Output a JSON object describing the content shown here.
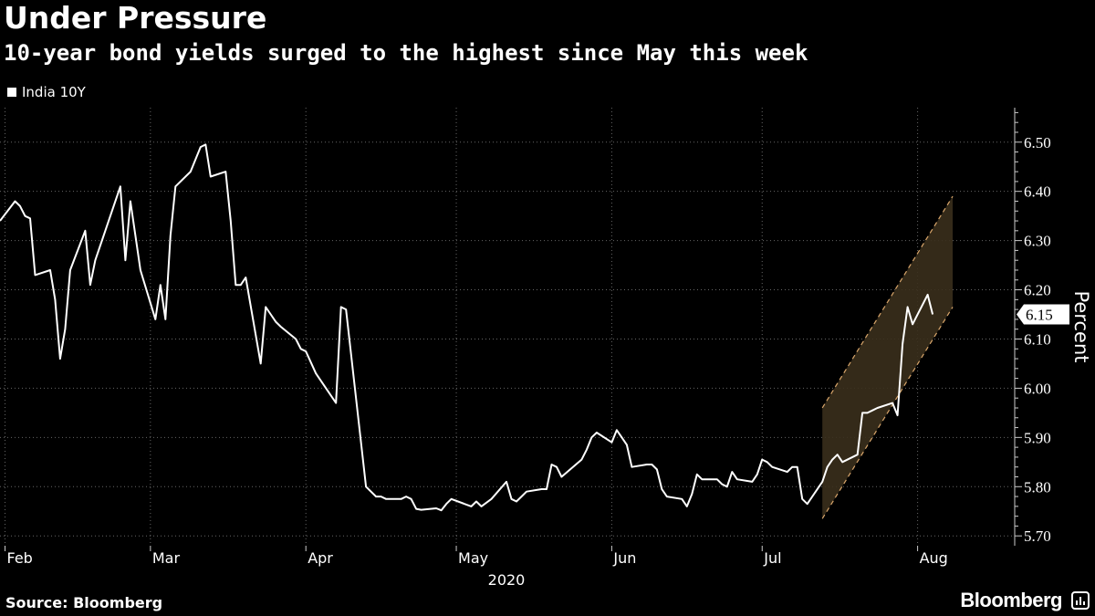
{
  "header": {
    "title": "Under Pressure",
    "subtitle": "10-year bond yields surged to the highest since May this week"
  },
  "footer": {
    "source": "Source: Bloomberg",
    "brand": "Bloomberg"
  },
  "colors": {
    "background": "#000000",
    "line": "#ffffff",
    "channel_fill": "#3a2f1c",
    "channel_border": "#d9a66b",
    "grid": "#666666"
  },
  "chart_data": {
    "type": "line",
    "title": "Under Pressure",
    "subtitle": "10-year bond yields surged to the highest since May this week",
    "ylabel": "Percent",
    "xlabel": "2020",
    "ylim": [
      5.68,
      6.57
    ],
    "xlim": [
      "2020-01-31",
      "2020-08-20"
    ],
    "y_axis_side": "right",
    "grid": true,
    "legend_position": "top-left",
    "x_tick_labels": [
      "Feb",
      "Mar",
      "Apr",
      "May",
      "Jun",
      "Jul",
      "Aug"
    ],
    "x_tick_dates": [
      "2020-02-01",
      "2020-03-01",
      "2020-04-01",
      "2020-05-01",
      "2020-06-01",
      "2020-07-01",
      "2020-08-01"
    ],
    "y_ticks": [
      5.7,
      5.8,
      5.9,
      6.0,
      6.1,
      6.2,
      6.3,
      6.4,
      6.5
    ],
    "y_tick_labels": [
      "5.70",
      "5.80",
      "5.90",
      "6.00",
      "6.10",
      "6.20",
      "6.30",
      "6.40",
      "6.50"
    ],
    "last_value_label": "6.15",
    "series": [
      {
        "name": "India 10Y",
        "color": "#ffffff",
        "points": [
          [
            "2020-01-31",
            6.34
          ],
          [
            "2020-02-03",
            6.38
          ],
          [
            "2020-02-04",
            6.37
          ],
          [
            "2020-02-05",
            6.35
          ],
          [
            "2020-02-06",
            6.345
          ],
          [
            "2020-02-07",
            6.23
          ],
          [
            "2020-02-10",
            6.24
          ],
          [
            "2020-02-11",
            6.18
          ],
          [
            "2020-02-12",
            6.06
          ],
          [
            "2020-02-13",
            6.12
          ],
          [
            "2020-02-14",
            6.24
          ],
          [
            "2020-02-17",
            6.32
          ],
          [
            "2020-02-18",
            6.21
          ],
          [
            "2020-02-19",
            6.26
          ],
          [
            "2020-02-20",
            6.29
          ],
          [
            "2020-02-24",
            6.41
          ],
          [
            "2020-02-25",
            6.26
          ],
          [
            "2020-02-26",
            6.38
          ],
          [
            "2020-02-27",
            6.31
          ],
          [
            "2020-02-28",
            6.24
          ],
          [
            "2020-03-02",
            6.14
          ],
          [
            "2020-03-03",
            6.21
          ],
          [
            "2020-03-04",
            6.14
          ],
          [
            "2020-03-05",
            6.31
          ],
          [
            "2020-03-06",
            6.41
          ],
          [
            "2020-03-09",
            6.44
          ],
          [
            "2020-03-11",
            6.49
          ],
          [
            "2020-03-12",
            6.495
          ],
          [
            "2020-03-13",
            6.43
          ],
          [
            "2020-03-16",
            6.44
          ],
          [
            "2020-03-17",
            6.34
          ],
          [
            "2020-03-18",
            6.21
          ],
          [
            "2020-03-19",
            6.21
          ],
          [
            "2020-03-20",
            6.225
          ],
          [
            "2020-03-23",
            6.05
          ],
          [
            "2020-03-24",
            6.165
          ],
          [
            "2020-03-25",
            6.15
          ],
          [
            "2020-03-26",
            6.135
          ],
          [
            "2020-03-27",
            6.125
          ],
          [
            "2020-03-30",
            6.1
          ],
          [
            "2020-03-31",
            6.08
          ],
          [
            "2020-04-01",
            6.075
          ],
          [
            "2020-04-03",
            6.03
          ],
          [
            "2020-04-07",
            5.97
          ],
          [
            "2020-04-08",
            6.165
          ],
          [
            "2020-04-09",
            6.16
          ],
          [
            "2020-04-13",
            5.8
          ],
          [
            "2020-04-15",
            5.78
          ],
          [
            "2020-04-16",
            5.78
          ],
          [
            "2020-04-17",
            5.775
          ],
          [
            "2020-04-20",
            5.775
          ],
          [
            "2020-04-21",
            5.78
          ],
          [
            "2020-04-22",
            5.775
          ],
          [
            "2020-04-23",
            5.755
          ],
          [
            "2020-04-24",
            5.753
          ],
          [
            "2020-04-27",
            5.756
          ],
          [
            "2020-04-28",
            5.752
          ],
          [
            "2020-04-29",
            5.765
          ],
          [
            "2020-04-30",
            5.775
          ],
          [
            "2020-05-04",
            5.76
          ],
          [
            "2020-05-05",
            5.77
          ],
          [
            "2020-05-06",
            5.76
          ],
          [
            "2020-05-08",
            5.775
          ],
          [
            "2020-05-11",
            5.81
          ],
          [
            "2020-05-12",
            5.775
          ],
          [
            "2020-05-13",
            5.77
          ],
          [
            "2020-05-14",
            5.78
          ],
          [
            "2020-05-15",
            5.79
          ],
          [
            "2020-05-18",
            5.795
          ],
          [
            "2020-05-19",
            5.795
          ],
          [
            "2020-05-20",
            5.845
          ],
          [
            "2020-05-21",
            5.84
          ],
          [
            "2020-05-22",
            5.82
          ],
          [
            "2020-05-26",
            5.855
          ],
          [
            "2020-05-27",
            5.875
          ],
          [
            "2020-05-28",
            5.9
          ],
          [
            "2020-05-29",
            5.91
          ],
          [
            "2020-06-01",
            5.89
          ],
          [
            "2020-06-02",
            5.915
          ],
          [
            "2020-06-03",
            5.9
          ],
          [
            "2020-06-04",
            5.885
          ],
          [
            "2020-06-05",
            5.84
          ],
          [
            "2020-06-08",
            5.845
          ],
          [
            "2020-06-09",
            5.845
          ],
          [
            "2020-06-10",
            5.835
          ],
          [
            "2020-06-11",
            5.795
          ],
          [
            "2020-06-12",
            5.78
          ],
          [
            "2020-06-15",
            5.775
          ],
          [
            "2020-06-16",
            5.76
          ],
          [
            "2020-06-17",
            5.785
          ],
          [
            "2020-06-18",
            5.825
          ],
          [
            "2020-06-19",
            5.815
          ],
          [
            "2020-06-22",
            5.815
          ],
          [
            "2020-06-23",
            5.805
          ],
          [
            "2020-06-24",
            5.8
          ],
          [
            "2020-06-25",
            5.83
          ],
          [
            "2020-06-26",
            5.815
          ],
          [
            "2020-06-29",
            5.81
          ],
          [
            "2020-06-30",
            5.825
          ],
          [
            "2020-07-01",
            5.855
          ],
          [
            "2020-07-02",
            5.85
          ],
          [
            "2020-07-03",
            5.84
          ],
          [
            "2020-07-06",
            5.83
          ],
          [
            "2020-07-07",
            5.84
          ],
          [
            "2020-07-08",
            5.84
          ],
          [
            "2020-07-09",
            5.775
          ],
          [
            "2020-07-10",
            5.765
          ],
          [
            "2020-07-13",
            5.81
          ],
          [
            "2020-07-14",
            5.84
          ],
          [
            "2020-07-15",
            5.855
          ],
          [
            "2020-07-16",
            5.865
          ],
          [
            "2020-07-17",
            5.85
          ],
          [
            "2020-07-20",
            5.865
          ],
          [
            "2020-07-21",
            5.95
          ],
          [
            "2020-07-22",
            5.95
          ],
          [
            "2020-07-23",
            5.955
          ],
          [
            "2020-07-24",
            5.96
          ],
          [
            "2020-07-27",
            5.97
          ],
          [
            "2020-07-28",
            5.945
          ],
          [
            "2020-07-29",
            6.09
          ],
          [
            "2020-07-30",
            6.165
          ],
          [
            "2020-07-31",
            6.13
          ],
          [
            "2020-08-03",
            6.19
          ],
          [
            "2020-08-04",
            6.15
          ]
        ]
      }
    ],
    "annotation": {
      "type": "channel",
      "fill": "#3a2f1c",
      "border_style": "dashed",
      "upper": [
        [
          "2020-07-13",
          5.96
        ],
        [
          "2020-08-08",
          6.39
        ]
      ],
      "lower": [
        [
          "2020-07-13",
          5.735
        ],
        [
          "2020-08-08",
          6.165
        ]
      ]
    }
  }
}
